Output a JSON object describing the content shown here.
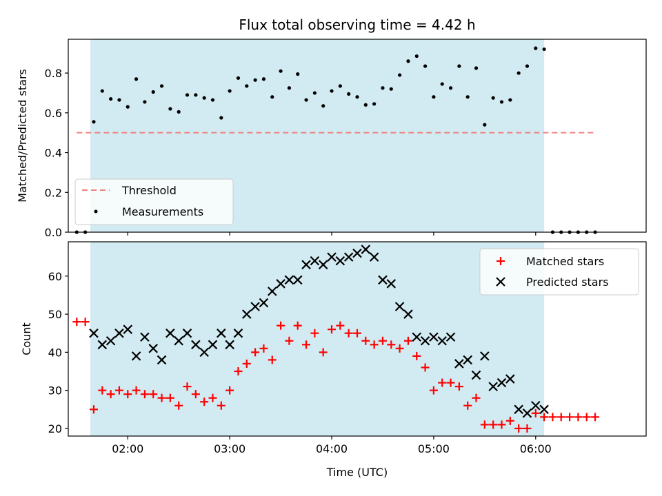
{
  "chart_data": [
    {
      "type": "scatter",
      "title": "Flux total observing time = 4.42 h",
      "xlabel": "",
      "ylabel": "Matched/Predicted stars",
      "ylim": [
        0,
        0.97
      ],
      "yticks": [
        "0.0",
        "0.2",
        "0.4",
        "0.6",
        "0.8"
      ],
      "ytick_values": [
        0,
        0.2,
        0.4,
        0.6,
        0.8
      ],
      "xlim": [
        "01:25",
        "07:05"
      ],
      "shaded_span": [
        "01:38",
        "06:05"
      ],
      "shade_color": "#add8e6",
      "legend_position": "lower-left",
      "threshold": {
        "name": "Threshold",
        "value": 0.5,
        "x_range": [
          "01:30",
          "06:35"
        ],
        "color": "#f08080"
      },
      "series": [
        {
          "name": "Measurements",
          "color": "#000000",
          "x": [
            "01:30",
            "01:35",
            "01:40",
            "01:45",
            "01:50",
            "01:55",
            "02:00",
            "02:05",
            "02:10",
            "02:15",
            "02:20",
            "02:25",
            "02:30",
            "02:35",
            "02:40",
            "02:45",
            "02:50",
            "02:55",
            "03:00",
            "03:05",
            "03:10",
            "03:15",
            "03:20",
            "03:25",
            "03:30",
            "03:35",
            "03:40",
            "03:45",
            "03:50",
            "03:55",
            "04:00",
            "04:05",
            "04:10",
            "04:15",
            "04:20",
            "04:25",
            "04:30",
            "04:35",
            "04:40",
            "04:45",
            "04:50",
            "04:55",
            "05:00",
            "05:05",
            "05:10",
            "05:15",
            "05:20",
            "05:25",
            "05:30",
            "05:35",
            "05:40",
            "05:45",
            "05:50",
            "05:55",
            "06:00",
            "06:05",
            "06:10",
            "06:15",
            "06:20",
            "06:25",
            "06:30",
            "06:35"
          ],
          "y": [
            0.0,
            0.0,
            0.555,
            0.71,
            0.67,
            0.665,
            0.63,
            0.77,
            0.655,
            0.705,
            0.735,
            0.62,
            0.605,
            0.69,
            0.69,
            0.675,
            0.665,
            0.575,
            0.71,
            0.775,
            0.735,
            0.765,
            0.77,
            0.68,
            0.81,
            0.725,
            0.795,
            0.665,
            0.7,
            0.635,
            0.71,
            0.735,
            0.695,
            0.68,
            0.64,
            0.645,
            0.725,
            0.72,
            0.79,
            0.86,
            0.885,
            0.835,
            0.68,
            0.745,
            0.725,
            0.835,
            0.68,
            0.825,
            0.54,
            0.675,
            0.655,
            0.665,
            0.8,
            0.835,
            0.925,
            0.92,
            0.0,
            0.0,
            0.0,
            0.0,
            0.0,
            0.0
          ]
        }
      ]
    },
    {
      "type": "scatter",
      "title": "",
      "xlabel": "Time (UTC)",
      "ylabel": "Count",
      "ylim": [
        18,
        69
      ],
      "yticks": [
        "20",
        "30",
        "40",
        "50",
        "60"
      ],
      "ytick_values": [
        20,
        30,
        40,
        50,
        60
      ],
      "xlim": [
        "01:25",
        "07:05"
      ],
      "xticks": [
        "02:00",
        "03:00",
        "04:00",
        "05:00",
        "06:00"
      ],
      "shaded_span": [
        "01:38",
        "06:05"
      ],
      "shade_color": "#add8e6",
      "legend_position": "top-right",
      "series": [
        {
          "name": "Matched stars",
          "marker": "plus",
          "color": "#ff0000",
          "x": [
            "01:30",
            "01:35",
            "01:40",
            "01:45",
            "01:50",
            "01:55",
            "02:00",
            "02:05",
            "02:10",
            "02:15",
            "02:20",
            "02:25",
            "02:30",
            "02:35",
            "02:40",
            "02:45",
            "02:50",
            "02:55",
            "03:00",
            "03:05",
            "03:10",
            "03:15",
            "03:20",
            "03:25",
            "03:30",
            "03:35",
            "03:40",
            "03:45",
            "03:50",
            "03:55",
            "04:00",
            "04:05",
            "04:10",
            "04:15",
            "04:20",
            "04:25",
            "04:30",
            "04:35",
            "04:40",
            "04:45",
            "04:50",
            "04:55",
            "05:00",
            "05:05",
            "05:10",
            "05:15",
            "05:20",
            "05:25",
            "05:30",
            "05:35",
            "05:40",
            "05:45",
            "05:50",
            "05:55",
            "06:00",
            "06:05",
            "06:10",
            "06:15",
            "06:20",
            "06:25",
            "06:30",
            "06:35"
          ],
          "y": [
            48,
            48,
            25,
            30,
            29,
            30,
            29,
            30,
            29,
            29,
            28,
            28,
            26,
            31,
            29,
            27,
            28,
            26,
            30,
            35,
            37,
            40,
            41,
            38,
            47,
            43,
            47,
            42,
            45,
            40,
            46,
            47,
            45,
            45,
            43,
            42,
            43,
            42,
            41,
            43,
            39,
            36,
            30,
            32,
            32,
            31,
            26,
            28,
            21,
            21,
            21,
            22,
            20,
            20,
            24,
            23,
            23,
            23,
            23,
            23,
            23,
            23
          ]
        },
        {
          "name": "Predicted stars",
          "marker": "x",
          "color": "#000000",
          "x": [
            "01:40",
            "01:45",
            "01:50",
            "01:55",
            "02:00",
            "02:05",
            "02:10",
            "02:15",
            "02:20",
            "02:25",
            "02:30",
            "02:35",
            "02:40",
            "02:45",
            "02:50",
            "02:55",
            "03:00",
            "03:05",
            "03:10",
            "03:15",
            "03:20",
            "03:25",
            "03:30",
            "03:35",
            "03:40",
            "03:45",
            "03:50",
            "03:55",
            "04:00",
            "04:05",
            "04:10",
            "04:15",
            "04:20",
            "04:25",
            "04:30",
            "04:35",
            "04:40",
            "04:45",
            "04:50",
            "04:55",
            "05:00",
            "05:05",
            "05:10",
            "05:15",
            "05:20",
            "05:25",
            "05:30",
            "05:35",
            "05:40",
            "05:45",
            "05:50",
            "05:55",
            "06:00",
            "06:05"
          ],
          "y": [
            45,
            42,
            43,
            45,
            46,
            39,
            44,
            41,
            38,
            45,
            43,
            45,
            42,
            40,
            42,
            45,
            42,
            45,
            50,
            52,
            53,
            56,
            58,
            59,
            59,
            63,
            64,
            63,
            65,
            64,
            65,
            66,
            67,
            65,
            59,
            58,
            52,
            50,
            44,
            43,
            44,
            43,
            44,
            37,
            38,
            34,
            39,
            31,
            32,
            33,
            25,
            24,
            26,
            25
          ]
        }
      ]
    }
  ]
}
